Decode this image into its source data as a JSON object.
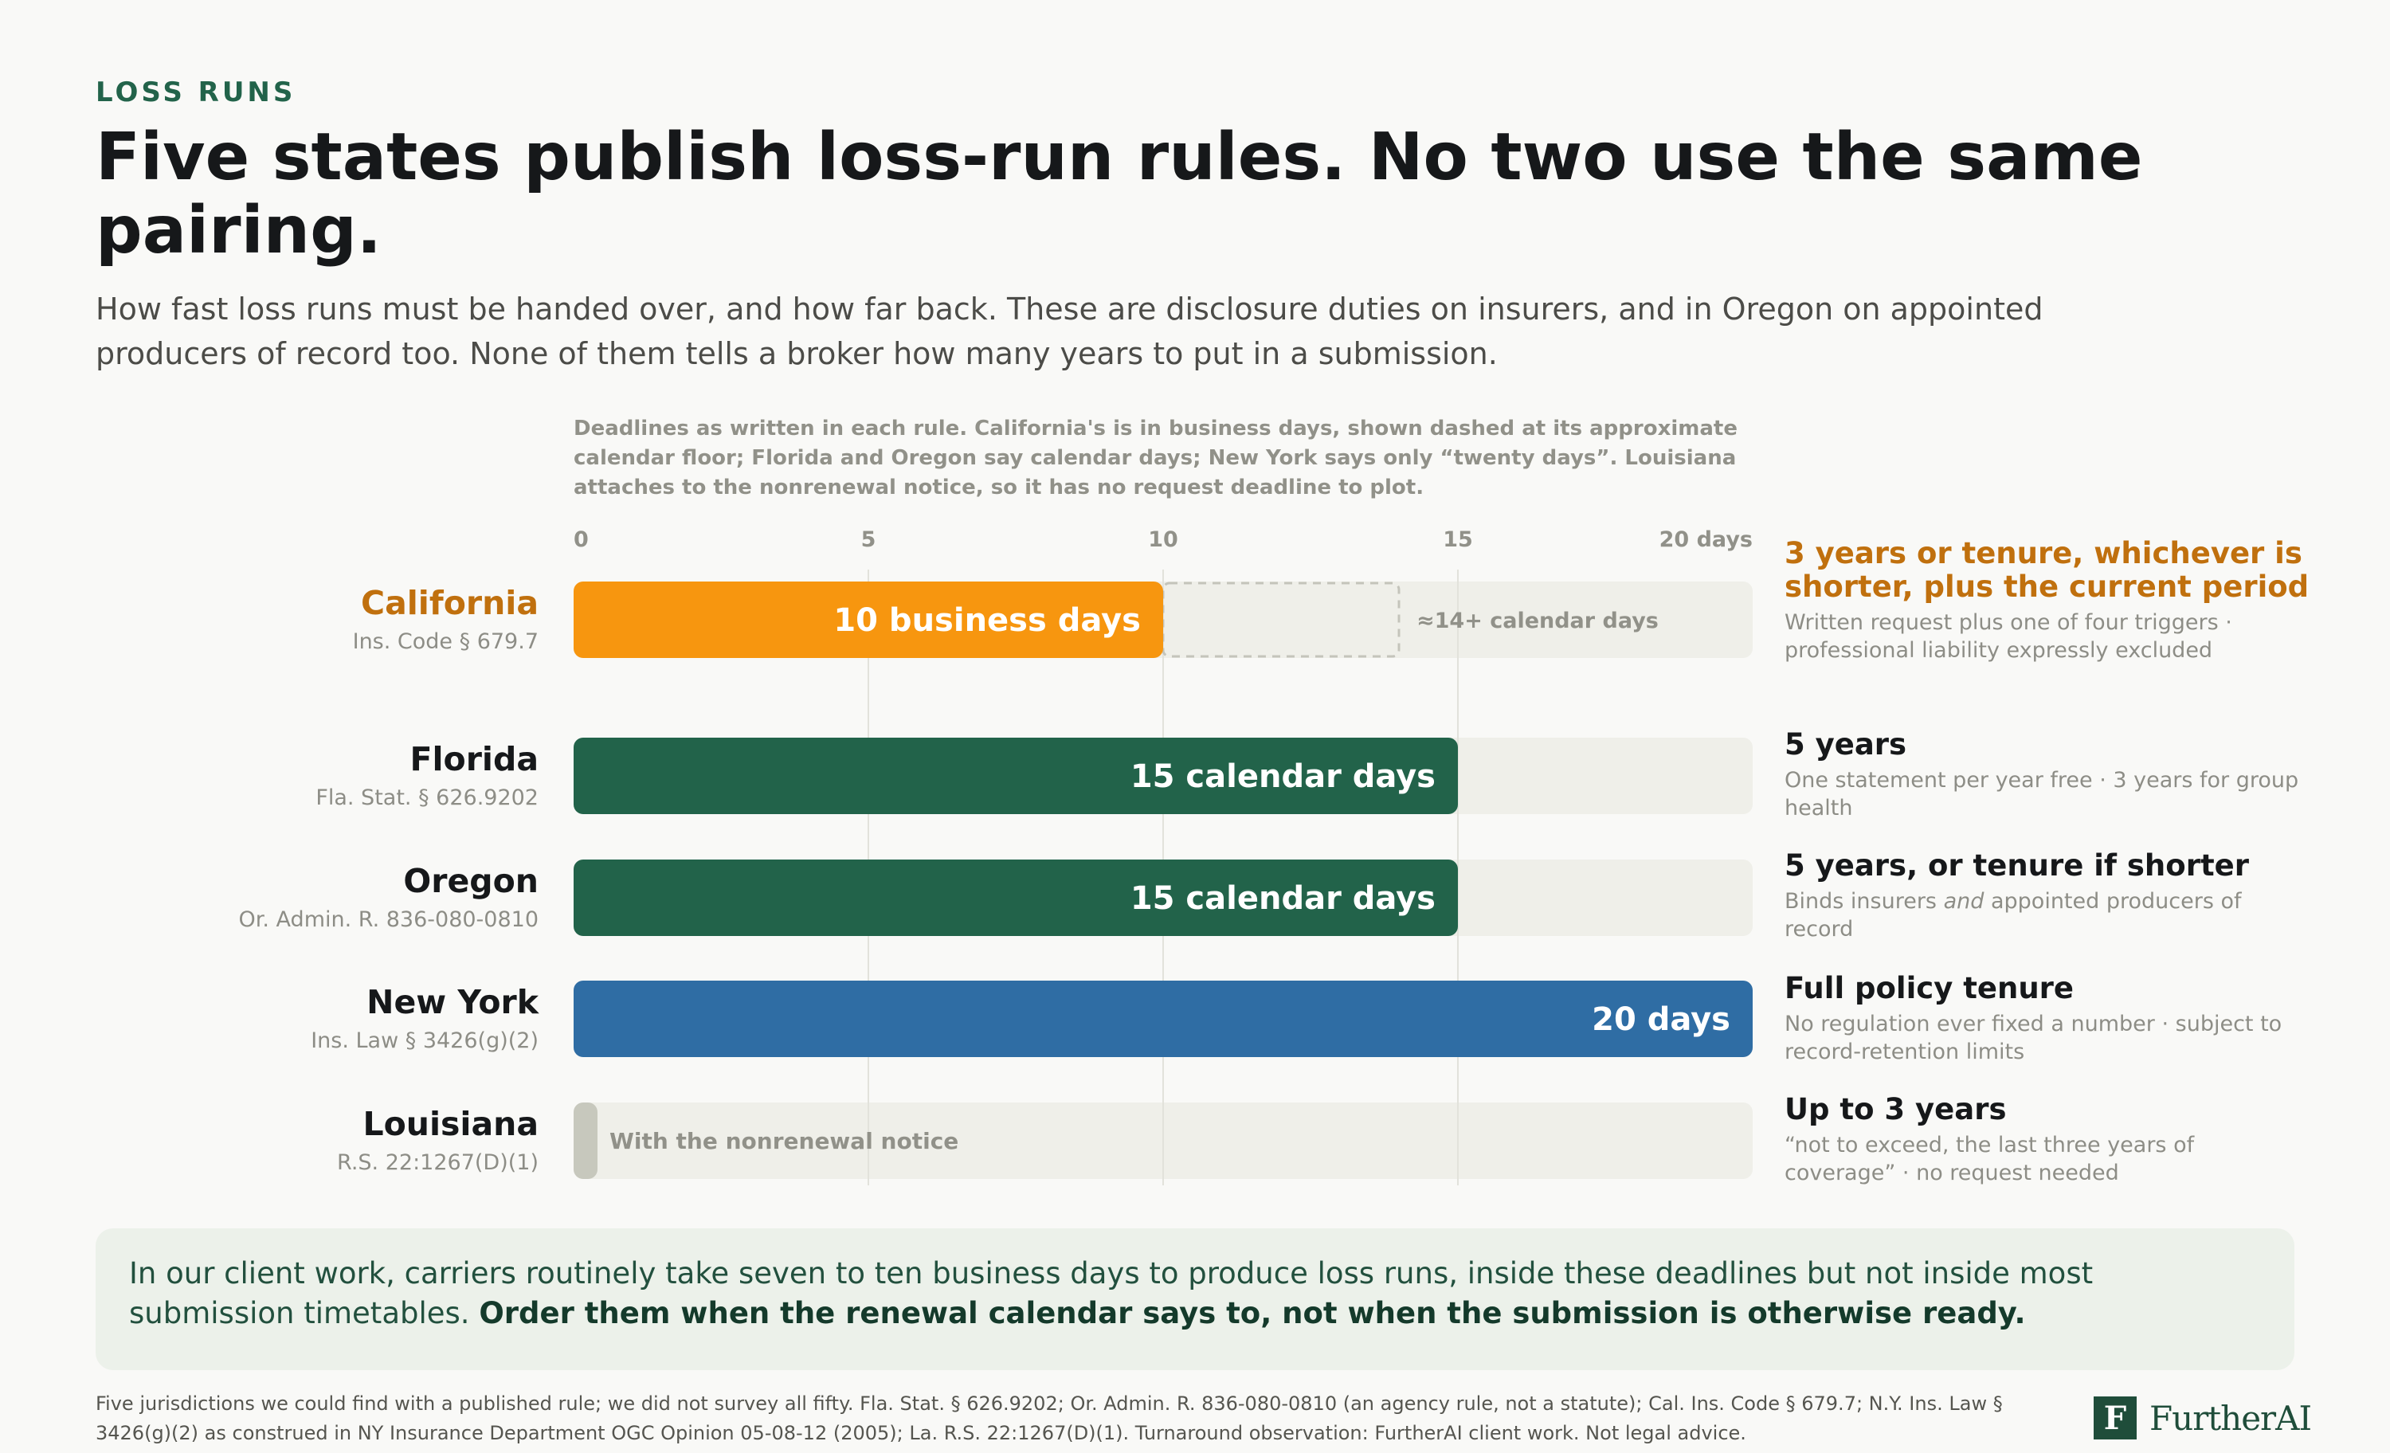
{
  "eyebrow": "LOSS RUNS",
  "headline": "Five states publish loss-run rules. No two use the same pairing.",
  "subhead": "How fast loss runs must be handed over, and how far back. These are disclosure duties on insurers, and in Oregon on appointed producers of record too. None of them tells a broker how many years to put in a submission.",
  "chart_note": "Deadlines as written in each rule. California's is in business days, shown dashed at its approximate calendar floor; Florida and Oregon say calendar days; New York says only “twenty days”. Louisiana attaches to the nonrenewal notice, so it has no request deadline to plot.",
  "colors": {
    "california": "#f7960f",
    "calendar_green": "#22634a",
    "new_york_blue": "#2f6da4",
    "track": "#efefe9",
    "louisiana_stub": "#c7c8bd",
    "accent_text": "#c0700e"
  },
  "chart_data": {
    "type": "bar",
    "orientation": "horizontal",
    "xlim": [
      0,
      20
    ],
    "ticks": [
      0,
      5,
      10,
      15,
      20
    ],
    "tick_labels": [
      "0",
      "5",
      "10",
      "15",
      "20 days"
    ],
    "grid": true,
    "categories": [
      "California",
      "Florida",
      "Oregon",
      "New York",
      "Louisiana"
    ],
    "rows": [
      {
        "state": "California",
        "citation": "Ins. Code § 679.7",
        "value": 10,
        "bar_label": "10 business days",
        "color": "#f7960f",
        "extension_to": 14,
        "extension_label": "≈14+ calendar days",
        "highlight": true
      },
      {
        "state": "Florida",
        "citation": "Fla. Stat. § 626.9202",
        "value": 15,
        "bar_label": "15 calendar days",
        "color": "#22634a"
      },
      {
        "state": "Oregon",
        "citation": "Or. Admin. R. 836-080-0810",
        "value": 15,
        "bar_label": "15 calendar days",
        "color": "#22634a"
      },
      {
        "state": "New York",
        "citation": "Ins. Law § 3426(g)(2)",
        "value": 20,
        "bar_label": "20 days",
        "color": "#2f6da4"
      },
      {
        "state": "Louisiana",
        "citation": "R.S. 22:1267(D)(1)",
        "value": null,
        "bar_label": "With the nonrenewal notice",
        "color": "#c7c8bd"
      }
    ]
  },
  "lookback": [
    {
      "title": "3 years or tenure, whichever is shorter, plus the current period",
      "sub": "Written request plus one of four triggers · professional liability expressly excluded",
      "accent": true
    },
    {
      "title": "5 years",
      "sub": "One statement per year free · 3 years for group health"
    },
    {
      "title": "5 years, or tenure if shorter",
      "sub_before": "Binds insurers ",
      "sub_em": "and",
      "sub_after": " appointed producers of record"
    },
    {
      "title": "Full policy tenure",
      "sub": "No regulation ever fixed a number · subject to record-retention limits"
    },
    {
      "title": "Up to 3 years",
      "sub": "“not to exceed, the last three years of coverage” · no request needed"
    }
  ],
  "callout": {
    "text": "In our client work, carriers routinely take seven to ten business days to produce loss runs, inside these deadlines but not inside most submission timetables. ",
    "bold": "Order them when the renewal calendar says to, not when the submission is otherwise ready."
  },
  "footer": "Five jurisdictions we could find with a published rule; we did not survey all fifty. Fla. Stat. § 626.9202; Or. Admin. R. 836-080-0810 (an agency rule, not a statute); Cal. Ins. Code § 679.7; N.Y. Ins. Law § 3426(g)(2) as construed in NY Insurance Department OGC Opinion 05-08-12 (2005); La. R.S. 22:1267(D)(1). Turnaround observation: FurtherAI client work. Not legal advice.",
  "logo": {
    "mark": "F",
    "name": "FurtherAI"
  }
}
